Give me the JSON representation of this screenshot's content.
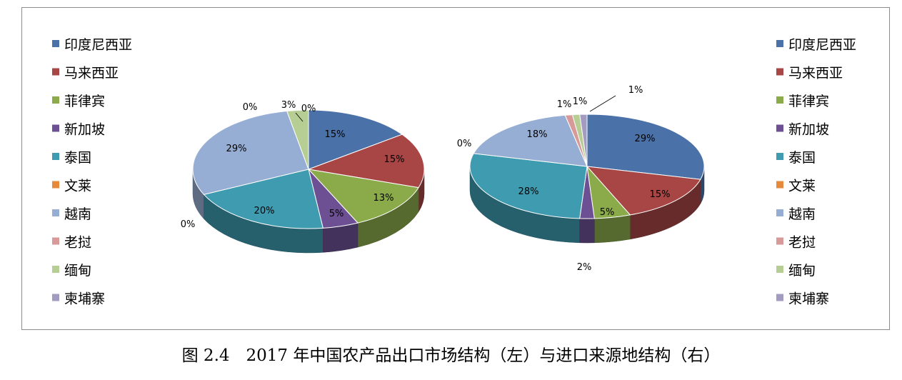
{
  "caption": "图 2.4　2017 年中国农产品出口市场结构（左）与进口来源地结构（右）",
  "colors": [
    "#4a72a8",
    "#a84545",
    "#8bab4b",
    "#6c5093",
    "#3f9bb0",
    "#e6893a",
    "#97aed4",
    "#d79a98",
    "#b6ce93",
    "#a39bc0"
  ],
  "chart_data": [
    {
      "type": "pie",
      "categories": [
        "印度尼西亚",
        "马来西亚",
        "菲律宾",
        "新加坡",
        "泰国",
        "文莱",
        "越南",
        "老挝",
        "缅甸",
        "柬埔寨"
      ],
      "values": [
        15,
        15,
        13,
        5,
        20,
        0,
        29,
        0,
        3,
        0
      ],
      "labels": [
        "15%",
        "15%",
        "13%",
        "5%",
        "20%",
        "0%",
        "29%",
        "0%",
        "3%",
        "0%"
      ],
      "legend_position": "left"
    },
    {
      "type": "pie",
      "categories": [
        "印度尼西亚",
        "马来西亚",
        "菲律宾",
        "新加坡",
        "泰国",
        "文莱",
        "越南",
        "老挝",
        "缅甸",
        "柬埔寨"
      ],
      "values": [
        29,
        15,
        5,
        2,
        28,
        0,
        18,
        1,
        1,
        1
      ],
      "labels": [
        "29%",
        "15%",
        "5%",
        "2%",
        "28%",
        "0%",
        "18%",
        "1%",
        "1%",
        "1%"
      ],
      "legend_position": "right"
    }
  ]
}
